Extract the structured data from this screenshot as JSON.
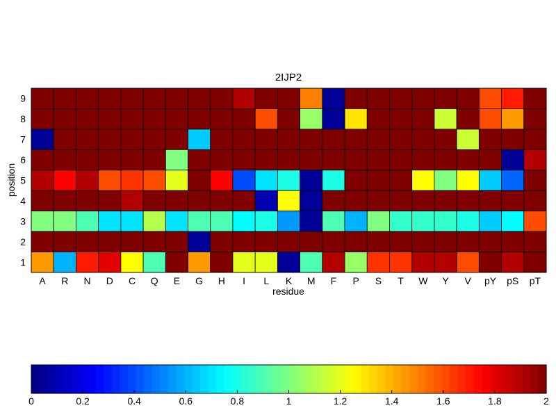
{
  "chart_data": {
    "type": "heatmap",
    "title": "2IJP2",
    "xlabel": "residue",
    "ylabel": "position",
    "x_categories": [
      "A",
      "R",
      "N",
      "D",
      "C",
      "Q",
      "E",
      "G",
      "H",
      "I",
      "L",
      "K",
      "M",
      "F",
      "P",
      "S",
      "T",
      "W",
      "Y",
      "V",
      "pY",
      "pS",
      "pT"
    ],
    "y_categories": [
      "9",
      "8",
      "7",
      "6",
      "5",
      "4",
      "3",
      "2",
      "1"
    ],
    "zlim": [
      0,
      2
    ],
    "colormap": "jet",
    "colorbar": {
      "ticks": [
        0,
        0.2,
        0.4,
        0.6,
        0.8,
        1,
        1.2,
        1.4,
        1.6,
        1.8,
        2
      ],
      "tick_labels": [
        "0",
        "0.2",
        "0.4",
        "0.6",
        "0.8",
        "1",
        "1.2",
        "1.4",
        "1.6",
        "1.8",
        "2"
      ],
      "placement": "bottom"
    },
    "values": [
      [
        2,
        2,
        2,
        2,
        2,
        2,
        2,
        2,
        2,
        1.9,
        2,
        2,
        1.5,
        0.05,
        2,
        2,
        2,
        2,
        2,
        2,
        1.6,
        1.7,
        2
      ],
      [
        2,
        2,
        2,
        2,
        2,
        2,
        2,
        2,
        2,
        2,
        1.6,
        2,
        1.05,
        0.05,
        1.3,
        2,
        2,
        2,
        1.15,
        2,
        1.6,
        1.45,
        2
      ],
      [
        0.05,
        2,
        2,
        2,
        2,
        2,
        2,
        0.65,
        2,
        2,
        2,
        2,
        2,
        2,
        2,
        2,
        2,
        2,
        2,
        1.15,
        2,
        2,
        2
      ],
      [
        2,
        2,
        2,
        2,
        2,
        2,
        1,
        2,
        2,
        2,
        2,
        2,
        2,
        2,
        2,
        2,
        2,
        2,
        2,
        2,
        2,
        0.05,
        1.9
      ],
      [
        1.9,
        1.75,
        1.9,
        1.6,
        1.65,
        1.6,
        1.2,
        2,
        1.75,
        0.4,
        0.7,
        0.8,
        0.05,
        0.8,
        2,
        2,
        2,
        1.25,
        1,
        1.25,
        0.65,
        0.45,
        2
      ],
      [
        2,
        2,
        2,
        2,
        1.9,
        2,
        2,
        2,
        2,
        2,
        0.1,
        1.25,
        0.05,
        2,
        2,
        2,
        2,
        2,
        2,
        2,
        2,
        2,
        2
      ],
      [
        1,
        1,
        0.9,
        0.7,
        0.7,
        1.1,
        0.7,
        0.9,
        0.9,
        0.75,
        0.8,
        0.55,
        0.05,
        0.9,
        0.6,
        1,
        0.85,
        0.85,
        0.85,
        0.8,
        0.65,
        0.75,
        1.6
      ],
      [
        2,
        2,
        2,
        2,
        2,
        2,
        2,
        0.05,
        2,
        2,
        2,
        2,
        2,
        2,
        2,
        2,
        2,
        2,
        2,
        2,
        2,
        2,
        2
      ],
      [
        1.45,
        0.6,
        1.7,
        1.8,
        1.25,
        0.9,
        2,
        1.45,
        2,
        1.2,
        1.2,
        0.05,
        0.9,
        1.9,
        1.05,
        1.65,
        1.65,
        1.9,
        1.9,
        1.6,
        2,
        1.9,
        2
      ]
    ]
  }
}
